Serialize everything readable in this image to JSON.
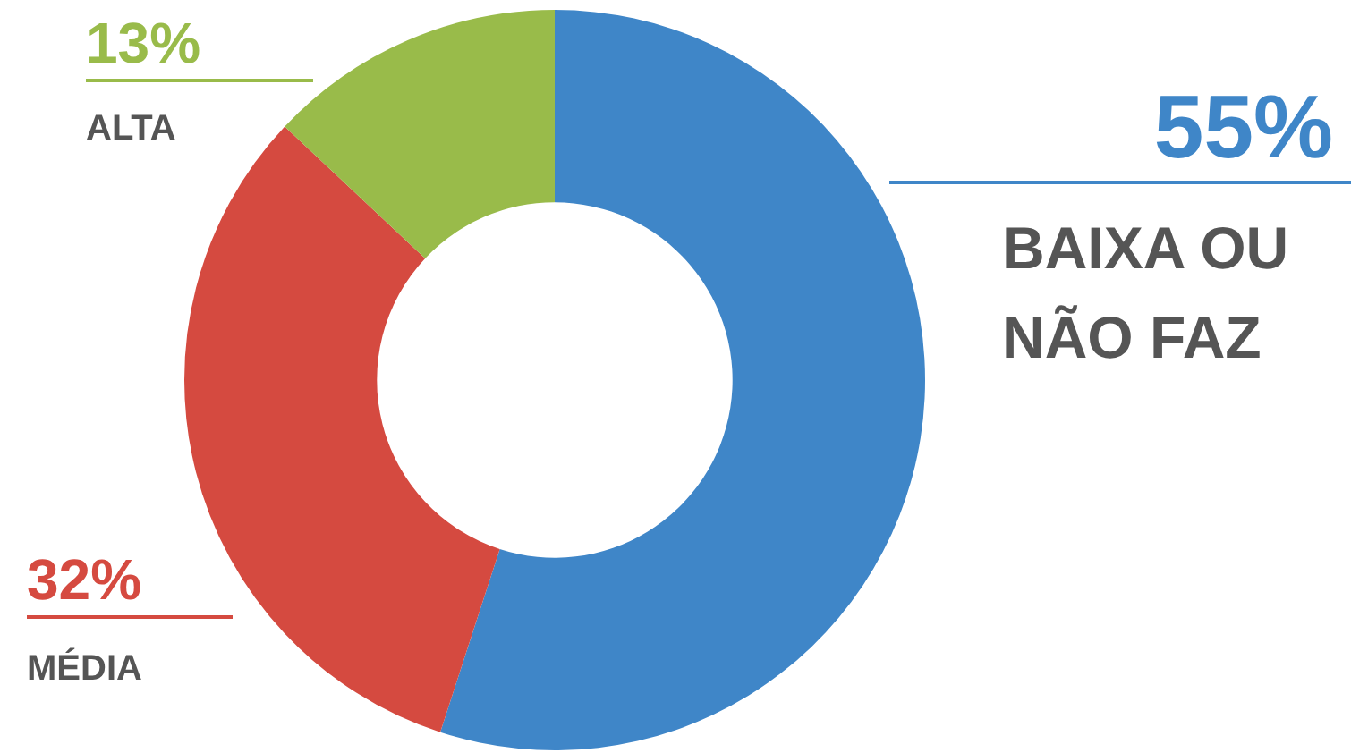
{
  "chart_data": {
    "type": "donut",
    "categories": [
      "BAIXA OU NÃO FAZ",
      "MÉDIA",
      "ALTA"
    ],
    "values": [
      55,
      32,
      13
    ],
    "colors": [
      "#3f86c8",
      "#d54a40",
      "#99bb4a"
    ],
    "value_labels": [
      "55%",
      "32%",
      "13%"
    ],
    "legend": false
  }
}
